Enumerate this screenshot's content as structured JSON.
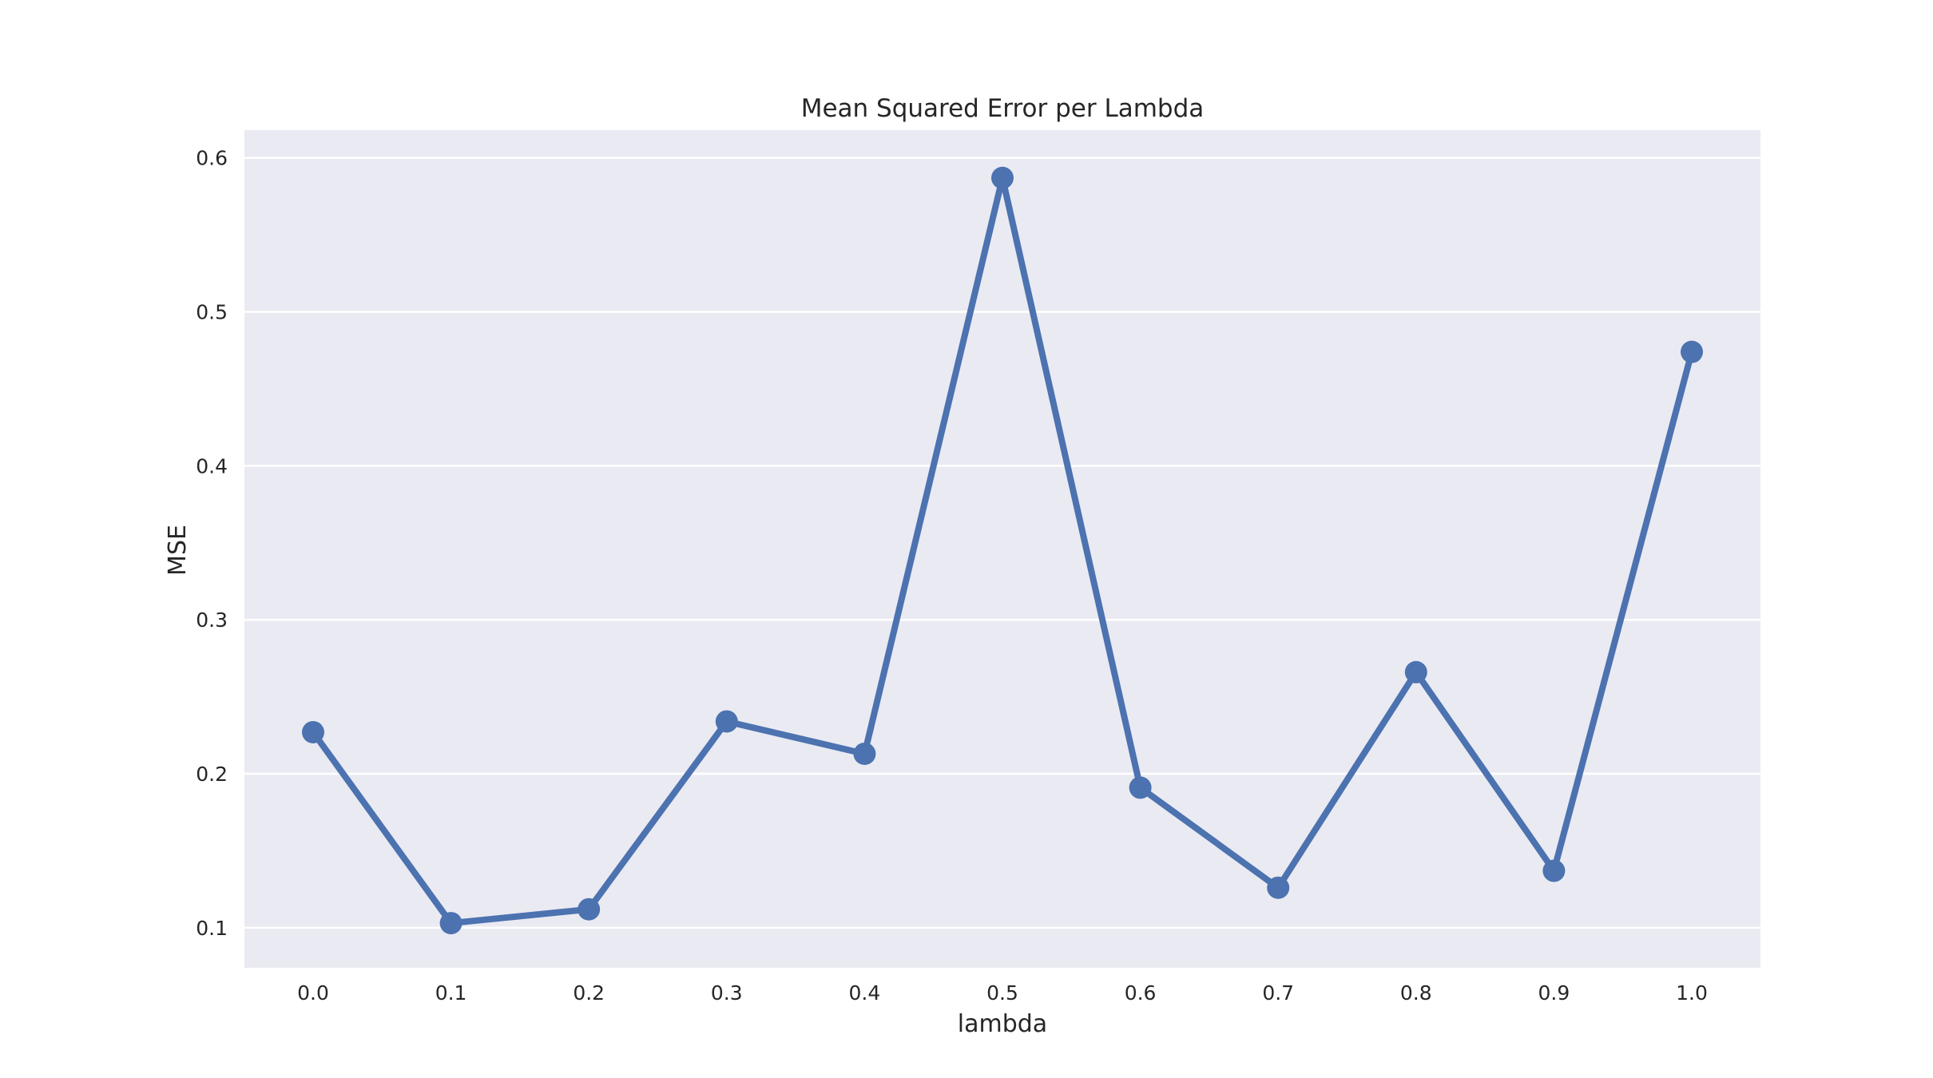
{
  "chart_data": {
    "type": "line",
    "title": "Mean Squared Error per Lambda",
    "xlabel": "lambda",
    "ylabel": "MSE",
    "categories": [
      "0.0",
      "0.1",
      "0.2",
      "0.3",
      "0.4",
      "0.5",
      "0.6",
      "0.7",
      "0.8",
      "0.9",
      "1.0"
    ],
    "series": [
      {
        "values": [
          0.227,
          0.103,
          0.112,
          0.234,
          0.213,
          0.587,
          0.191,
          0.126,
          0.266,
          0.137,
          0.474
        ]
      }
    ],
    "ylim": [
      0.074,
      0.618
    ],
    "yticks": [
      0.1,
      0.2,
      0.3,
      0.4,
      0.5,
      0.6
    ],
    "ytick_labels": [
      "0.1",
      "0.2",
      "0.3",
      "0.4",
      "0.5",
      "0.6"
    ],
    "grid": true,
    "legend": "none",
    "colors": {
      "plot_background": "#eaeaf2",
      "grid": "#ffffff",
      "series": "#4c72b0",
      "text": "#262626"
    }
  }
}
